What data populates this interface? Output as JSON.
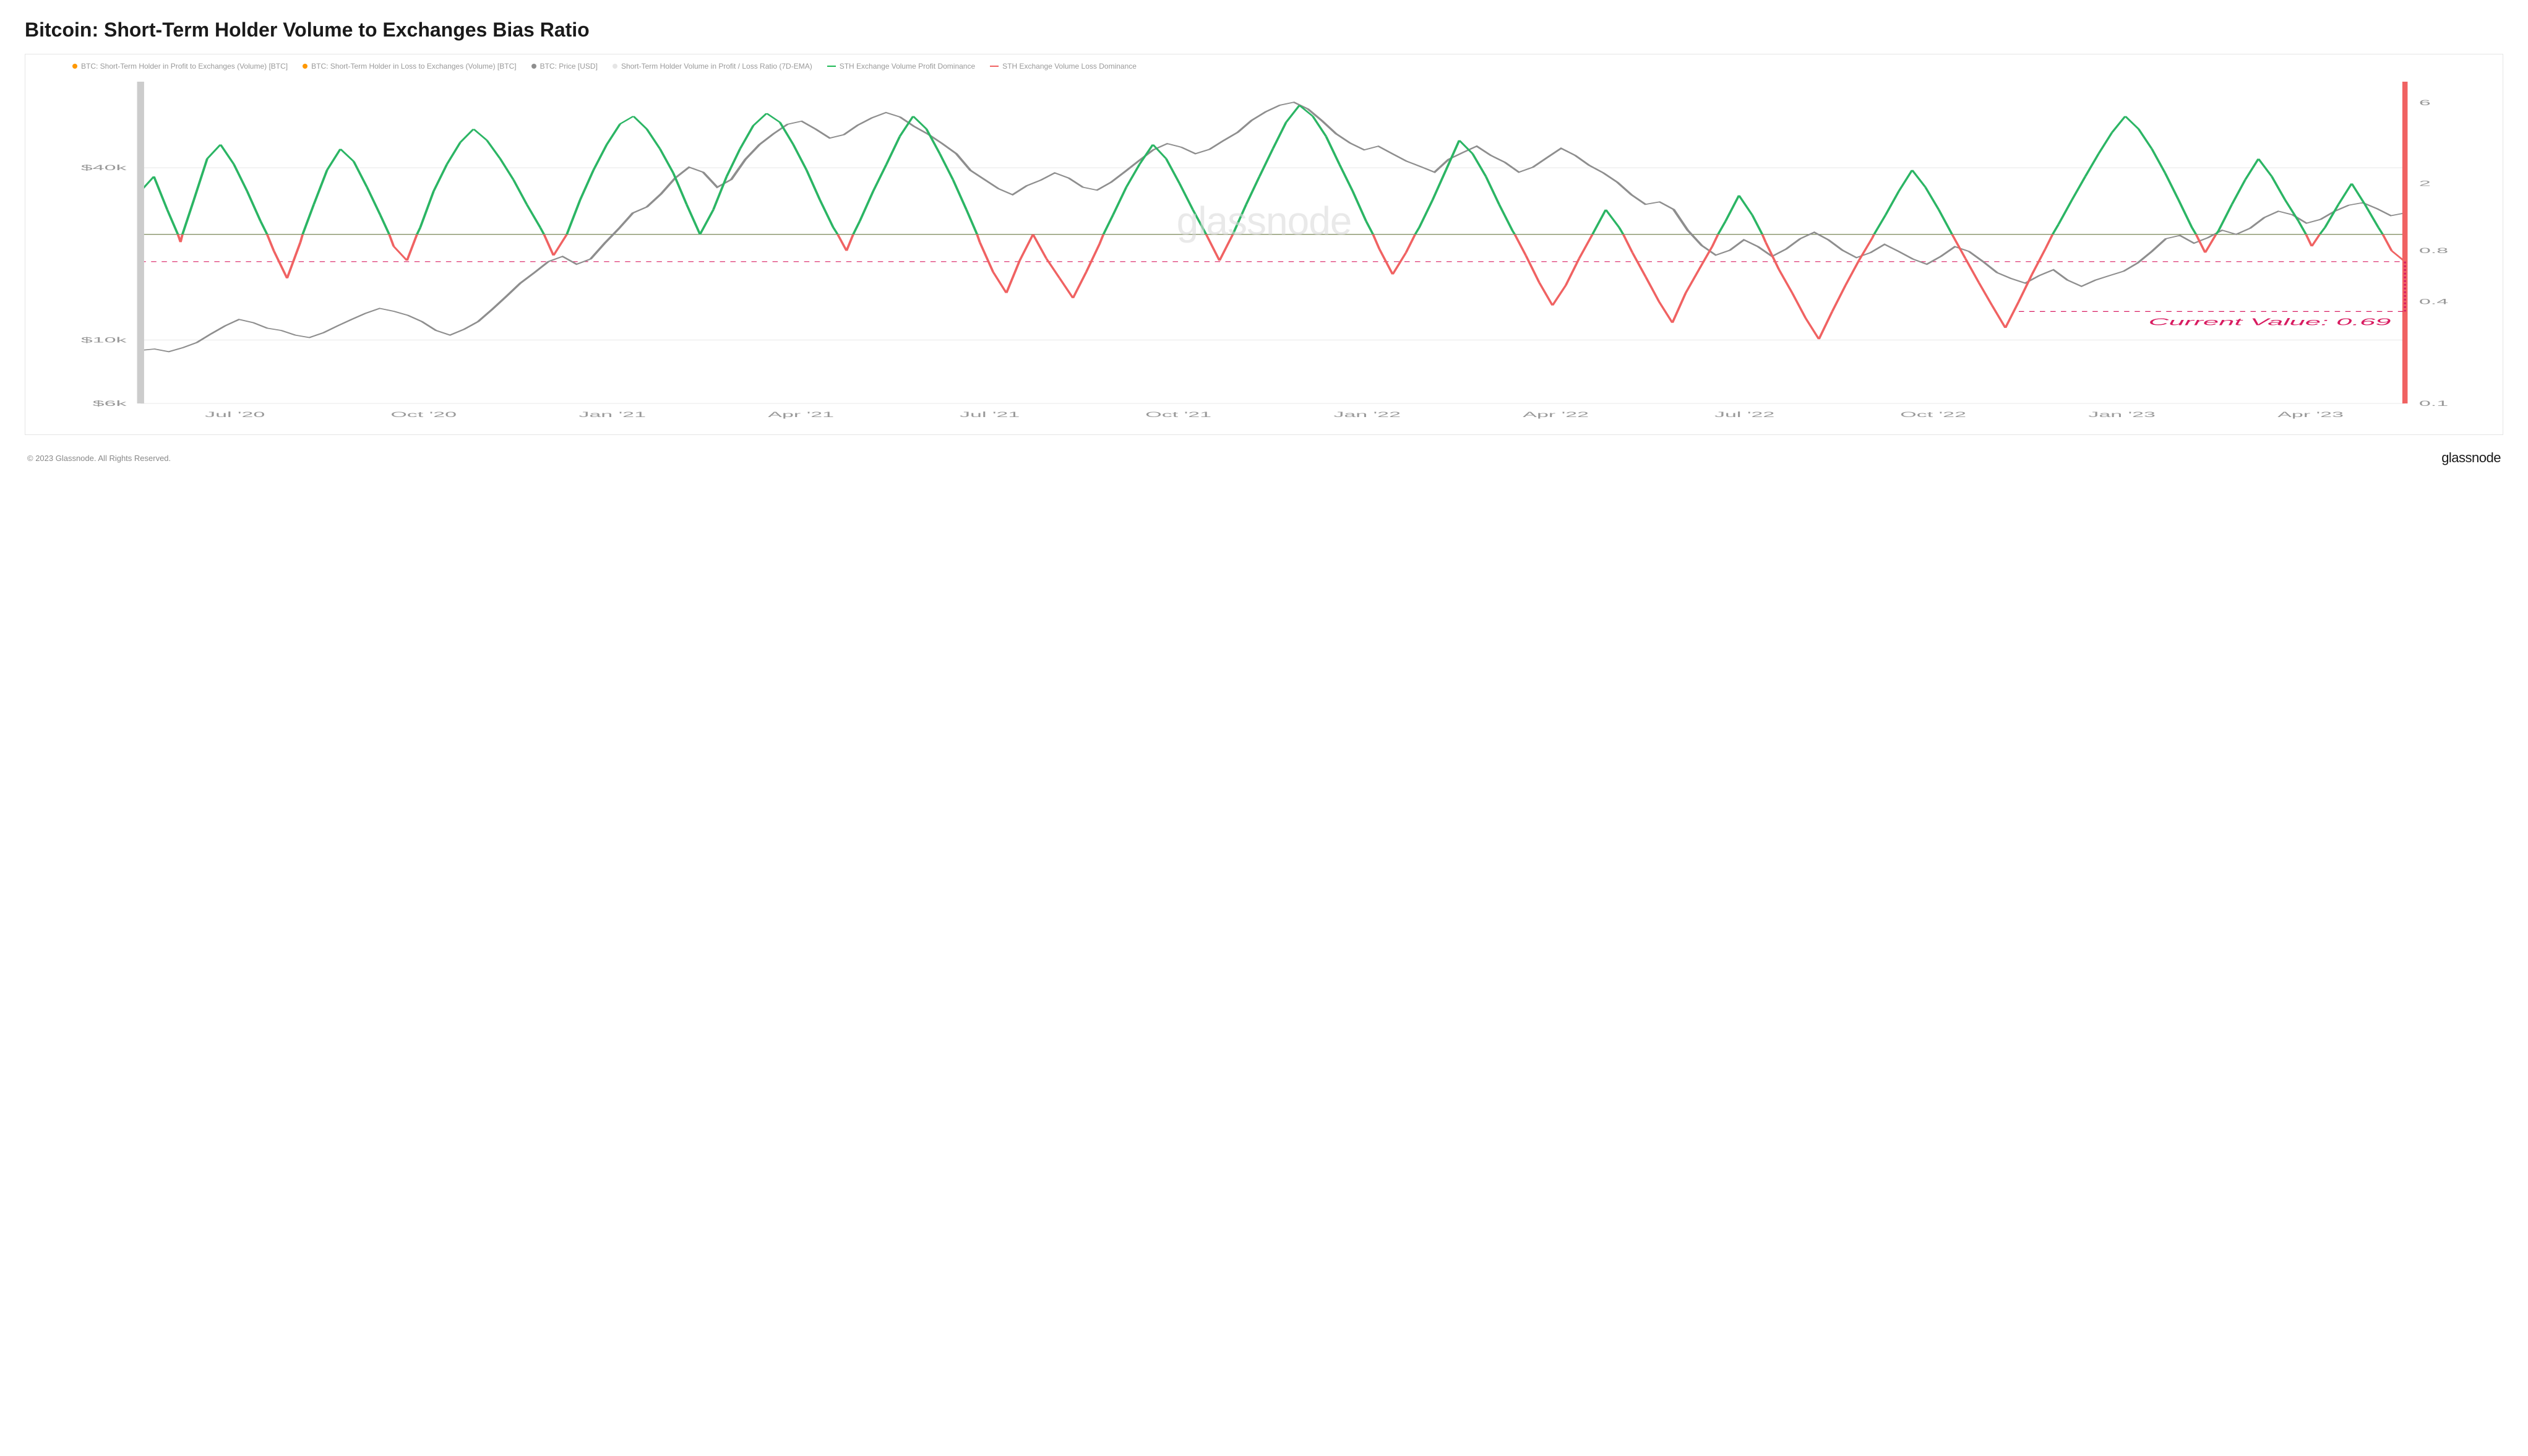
{
  "title": "Bitcoin: Short-Term Holder Volume to Exchanges Bias Ratio",
  "copyright": "© 2023 Glassnode. All Rights Reserved.",
  "brand": "glassnode",
  "watermark": "glassnode",
  "current_value_label": "Current Value: 0.69",
  "legend": [
    {
      "label": "BTC: Short-Term Holder in Profit to Exchanges (Volume) [BTC]",
      "color": "#ff9800",
      "type": "dot"
    },
    {
      "label": "BTC: Short-Term Holder in Loss to Exchanges (Volume) [BTC]",
      "color": "#ff9800",
      "type": "dot"
    },
    {
      "label": "BTC: Price [USD]",
      "color": "#8e8e8e",
      "type": "dot"
    },
    {
      "label": "Short-Term Holder Volume in Profit / Loss Ratio (7D-EMA)",
      "color": "#e5e5e5",
      "type": "dot"
    },
    {
      "label": "STH Exchange Volume Profit Dominance",
      "color": "#1db954",
      "type": "line"
    },
    {
      "label": "STH Exchange Volume Loss Dominance",
      "color": "#f06262",
      "type": "line"
    }
  ],
  "chart": {
    "type": "line",
    "x_labels": [
      "Jul '20",
      "Oct '20",
      "Jan '21",
      "Apr '21",
      "Jul '21",
      "Oct '21",
      "Jan '22",
      "Apr '22",
      "Jul '22",
      "Oct '22",
      "Jan '23",
      "Apr '23"
    ],
    "y_left": {
      "scale": "log",
      "ticks": [
        {
          "v": 6000,
          "label": "$6k"
        },
        {
          "v": 10000,
          "label": "$10k"
        },
        {
          "v": 40000,
          "label": "$40k"
        }
      ],
      "min": 6000,
      "max": 80000
    },
    "y_right": {
      "scale": "log",
      "ticks": [
        {
          "v": 0.1,
          "label": "0.1"
        },
        {
          "v": 0.4,
          "label": "0.4"
        },
        {
          "v": 0.8,
          "label": "0.8"
        },
        {
          "v": 2,
          "label": "2"
        },
        {
          "v": 6,
          "label": "6"
        }
      ],
      "min": 0.1,
      "max": 8
    },
    "hline_value": 1.0,
    "hline_color": "#f06262",
    "dotted_hline_value": 0.69,
    "dotted_hline_color": "#d81b60",
    "colors": {
      "price": "#8e8e8e",
      "green": "#2bb564",
      "red": "#f06262",
      "vbars": "#cccccc"
    },
    "line_width": 1.4,
    "price_line_width": 1.6,
    "background_color": "#ffffff",
    "price_series": [
      9200,
      9300,
      9100,
      9400,
      9800,
      10500,
      11200,
      11800,
      11500,
      11000,
      10800,
      10400,
      10200,
      10600,
      11200,
      11800,
      12400,
      12900,
      12600,
      12200,
      11600,
      10800,
      10400,
      10900,
      11600,
      12800,
      14200,
      15800,
      17200,
      18800,
      19600,
      18400,
      19200,
      21800,
      24500,
      27800,
      29200,
      32400,
      36800,
      40200,
      38600,
      34200,
      36400,
      42800,
      48200,
      52600,
      56800,
      58200,
      54600,
      50800,
      52200,
      56400,
      59800,
      62400,
      60200,
      55800,
      52400,
      48600,
      44800,
      39200,
      36400,
      33800,
      32200,
      34600,
      36200,
      38400,
      36800,
      34200,
      33400,
      35600,
      38800,
      42400,
      46200,
      48600,
      47200,
      44800,
      46400,
      49800,
      53200,
      58600,
      62800,
      66200,
      67800,
      64200,
      58400,
      52600,
      48800,
      46200,
      47600,
      44800,
      42200,
      40400,
      38600,
      42800,
      45200,
      47600,
      44200,
      41800,
      38600,
      40200,
      43400,
      46800,
      44200,
      40800,
      38400,
      35600,
      32200,
      29800,
      30400,
      28600,
      24200,
      21400,
      19800,
      20600,
      22400,
      21200,
      19600,
      20800,
      22600,
      23800,
      22400,
      20600,
      19400,
      20200,
      21600,
      20400,
      19200,
      18400,
      19600,
      21200,
      20400,
      18800,
      17200,
      16400,
      15800,
      16800,
      17600,
      16200,
      15400,
      16200,
      16800,
      17400,
      18600,
      20400,
      22600,
      23200,
      21800,
      22800,
      24200,
      23400,
      24600,
      26800,
      28200,
      27400,
      25600,
      26400,
      28200,
      29600,
      30200,
      28800,
      27200,
      27800
    ],
    "ratio_series": [
      1.8,
      2.2,
      1.4,
      0.9,
      1.6,
      2.8,
      3.4,
      2.6,
      1.8,
      1.2,
      0.8,
      0.55,
      0.9,
      1.5,
      2.4,
      3.2,
      2.7,
      1.9,
      1.3,
      0.85,
      0.7,
      1.1,
      1.8,
      2.6,
      3.5,
      4.2,
      3.6,
      2.8,
      2.1,
      1.5,
      1.1,
      0.75,
      1.0,
      1.6,
      2.4,
      3.4,
      4.5,
      5.0,
      4.2,
      3.2,
      2.3,
      1.5,
      1.0,
      1.4,
      2.2,
      3.2,
      4.4,
      5.2,
      4.6,
      3.4,
      2.4,
      1.6,
      1.1,
      0.8,
      1.2,
      1.8,
      2.6,
      3.8,
      5.0,
      4.2,
      3.0,
      2.1,
      1.4,
      0.9,
      0.6,
      0.45,
      0.7,
      1.0,
      0.72,
      0.55,
      0.42,
      0.6,
      0.88,
      1.3,
      1.9,
      2.6,
      3.4,
      2.8,
      2.0,
      1.4,
      1.0,
      0.7,
      1.0,
      1.5,
      2.2,
      3.2,
      4.6,
      5.8,
      5.0,
      3.8,
      2.6,
      1.8,
      1.2,
      0.82,
      0.58,
      0.78,
      1.1,
      1.6,
      2.4,
      3.6,
      3.0,
      2.2,
      1.5,
      1.05,
      0.75,
      0.52,
      0.38,
      0.5,
      0.72,
      1.0,
      1.4,
      1.1,
      0.78,
      0.56,
      0.4,
      0.3,
      0.45,
      0.62,
      0.85,
      1.2,
      1.7,
      1.3,
      0.9,
      0.62,
      0.45,
      0.32,
      0.24,
      0.35,
      0.5,
      0.7,
      0.95,
      1.3,
      1.8,
      2.4,
      1.9,
      1.4,
      1.0,
      0.72,
      0.52,
      0.38,
      0.28,
      0.4,
      0.58,
      0.82,
      1.15,
      1.6,
      2.2,
      3.0,
      4.0,
      5.0,
      4.2,
      3.2,
      2.3,
      1.6,
      1.1,
      0.78,
      1.05,
      1.5,
      2.1,
      2.8,
      2.2,
      1.6,
      1.2,
      0.85,
      1.1,
      1.5,
      2.0,
      1.5,
      1.1,
      0.8,
      0.69
    ]
  }
}
